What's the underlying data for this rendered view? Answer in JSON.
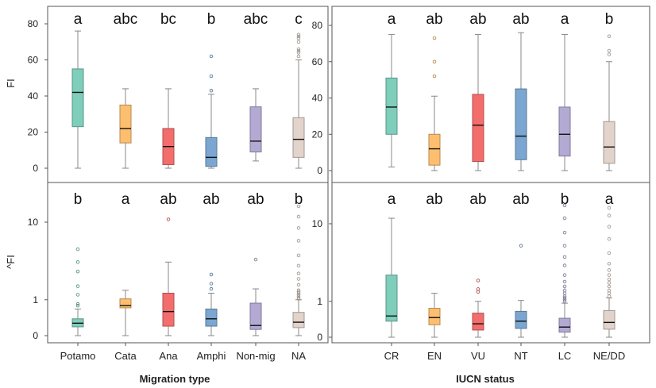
{
  "chart_data": [
    {
      "type": "boxplot",
      "panel": "top-left",
      "ylabel": "FI",
      "yscale": "linear",
      "ylim": [
        -4,
        84
      ],
      "yticks": [
        0,
        20,
        40,
        60,
        80
      ],
      "categories": [
        "Potamo",
        "Cata",
        "Ana",
        "Amphi",
        "Non-mig",
        "NA"
      ],
      "letters": [
        "a",
        "abc",
        "bc",
        "b",
        "abc",
        "c"
      ],
      "colors": [
        "#7fcdbb",
        "#fdbf6f",
        "#f46d6d",
        "#7aa6d1",
        "#b3aad4",
        "#e2d3cb"
      ],
      "boxes": [
        {
          "min": 0,
          "q1": 23,
          "median": 42,
          "q3": 55,
          "max": 76,
          "outliers": []
        },
        {
          "min": 0,
          "q1": 14,
          "median": 22,
          "q3": 35,
          "max": 44,
          "outliers": []
        },
        {
          "min": 0,
          "q1": 2,
          "median": 12,
          "q3": 22,
          "max": 44,
          "outliers": []
        },
        {
          "min": 0,
          "q1": 1,
          "median": 6,
          "q3": 17,
          "max": 41,
          "outliers": [
            43,
            51,
            62
          ]
        },
        {
          "min": 4,
          "q1": 9,
          "median": 15,
          "q3": 34,
          "max": 44,
          "outliers": []
        },
        {
          "min": 0,
          "q1": 6,
          "median": 16,
          "q3": 28,
          "max": 60,
          "outliers": [
            62,
            64,
            65,
            66,
            70,
            72,
            73,
            74
          ]
        }
      ]
    },
    {
      "type": "boxplot",
      "panel": "bottom-left",
      "ylabel": "^FI",
      "yscale": "sqrt",
      "ylim": [
        -0.03,
        20
      ],
      "yticks": [
        0,
        1,
        10
      ],
      "categories": [
        "Potamo",
        "Cata",
        "Ana",
        "Amphi",
        "Non-mig",
        "NA"
      ],
      "letters": [
        "b",
        "a",
        "ab",
        "ab",
        "ab",
        "b"
      ],
      "colors": [
        "#7fcdbb",
        "#fdbf6f",
        "#f46d6d",
        "#7aa6d1",
        "#b3aad4",
        "#e2d3cb"
      ],
      "boxes": [
        {
          "min": 0,
          "q1": 0.06,
          "median": 0.12,
          "q3": 0.22,
          "max": 0.55,
          "outliers": [
            0.7,
            0.78,
            1.3,
            1.9,
            3.2,
            4.2,
            5.8
          ]
        },
        {
          "min": 0,
          "q1": 0.6,
          "median": 0.7,
          "q3": 1.05,
          "max": 1.6,
          "outliers": []
        },
        {
          "min": 0,
          "q1": 0.07,
          "median": 0.45,
          "q3": 1.4,
          "max": 4.2,
          "outliers": [
            10.5
          ]
        },
        {
          "min": 0,
          "q1": 0.07,
          "median": 0.22,
          "q3": 0.55,
          "max": 1.4,
          "outliers": [
            1.7,
            2.1,
            2.9
          ]
        },
        {
          "min": 0,
          "q1": 0.03,
          "median": 0.08,
          "q3": 0.82,
          "max": 1.7,
          "outliers": [
            4.5
          ]
        },
        {
          "min": 0,
          "q1": 0.05,
          "median": 0.14,
          "q3": 0.42,
          "max": 1.0,
          "outliers": [
            1.05,
            1.1,
            1.2,
            1.3,
            1.4,
            1.5,
            1.6,
            2.0,
            2.5,
            3.0,
            3.8,
            5.0,
            7.0,
            9.0,
            11.0,
            13.0
          ]
        }
      ]
    },
    {
      "type": "boxplot",
      "panel": "top-right",
      "ylabel": "",
      "yscale": "linear",
      "ylim": [
        -4,
        84
      ],
      "yticks": [
        0,
        20,
        40,
        60,
        80
      ],
      "categories": [
        "CR",
        "EN",
        "VU",
        "NT",
        "LC",
        "NE/DD"
      ],
      "letters": [
        "a",
        "ab",
        "ab",
        "ab",
        "a",
        "b"
      ],
      "colors": [
        "#7fcdbb",
        "#fdbf6f",
        "#f46d6d",
        "#7aa6d1",
        "#b3aad4",
        "#e2d3cb"
      ],
      "boxes": [
        {
          "min": 2,
          "q1": 20,
          "median": 35,
          "q3": 51,
          "max": 75,
          "outliers": []
        },
        {
          "min": 0,
          "q1": 3,
          "median": 12,
          "q3": 20,
          "max": 41,
          "outliers": [
            52,
            60,
            73
          ]
        },
        {
          "min": 0,
          "q1": 5,
          "median": 25,
          "q3": 42,
          "max": 75,
          "outliers": []
        },
        {
          "min": 0,
          "q1": 6,
          "median": 19,
          "q3": 45,
          "max": 76,
          "outliers": []
        },
        {
          "min": 0,
          "q1": 8,
          "median": 20,
          "q3": 35,
          "max": 75,
          "outliers": []
        },
        {
          "min": 0,
          "q1": 4,
          "median": 13,
          "q3": 27,
          "max": 60,
          "outliers": [
            64,
            66,
            74
          ]
        }
      ]
    },
    {
      "type": "boxplot",
      "panel": "bottom-right",
      "ylabel": "",
      "yscale": "sqrt",
      "ylim": [
        -0.03,
        20
      ],
      "yticks": [
        0,
        1,
        10
      ],
      "categories": [
        "CR",
        "EN",
        "VU",
        "NT",
        "LC",
        "NE/DD"
      ],
      "letters": [
        "a",
        "ab",
        "ab",
        "ab",
        "b",
        "a"
      ],
      "colors": [
        "#7fcdbb",
        "#fdbf6f",
        "#f46d6d",
        "#7aa6d1",
        "#b3aad4",
        "#e2d3cb"
      ],
      "boxes": [
        {
          "min": 0,
          "q1": 0.2,
          "median": 0.35,
          "q3": 3.0,
          "max": 11.0,
          "outliers": []
        },
        {
          "min": 0,
          "q1": 0.12,
          "median": 0.3,
          "q3": 0.65,
          "max": 1.5,
          "outliers": []
        },
        {
          "min": 0,
          "q1": 0.04,
          "median": 0.14,
          "q3": 0.45,
          "max": 1.0,
          "outliers": [
            1.6,
            1.8,
            2.5
          ]
        },
        {
          "min": 0,
          "q1": 0.06,
          "median": 0.2,
          "q3": 0.52,
          "max": 1.05,
          "outliers": [
            6.5
          ]
        },
        {
          "min": 0,
          "q1": 0.02,
          "median": 0.08,
          "q3": 0.28,
          "max": 0.9,
          "outliers": [
            1.0,
            1.1,
            1.2,
            1.3,
            1.5,
            1.7,
            2.0,
            2.4,
            3.0,
            4.0,
            5.0,
            6.5,
            8.5,
            11.0,
            13.5
          ]
        },
        {
          "min": 0,
          "q1": 0.05,
          "median": 0.17,
          "q3": 0.55,
          "max": 1.2,
          "outliers": [
            1.3,
            1.5,
            1.7,
            2.0,
            2.3,
            2.6,
            3.0,
            3.5,
            4.2,
            5.5,
            7.5,
            9.5,
            11.5,
            13.0
          ]
        }
      ]
    }
  ],
  "x_titles": {
    "left": "Migration type",
    "right": "IUCN status"
  }
}
